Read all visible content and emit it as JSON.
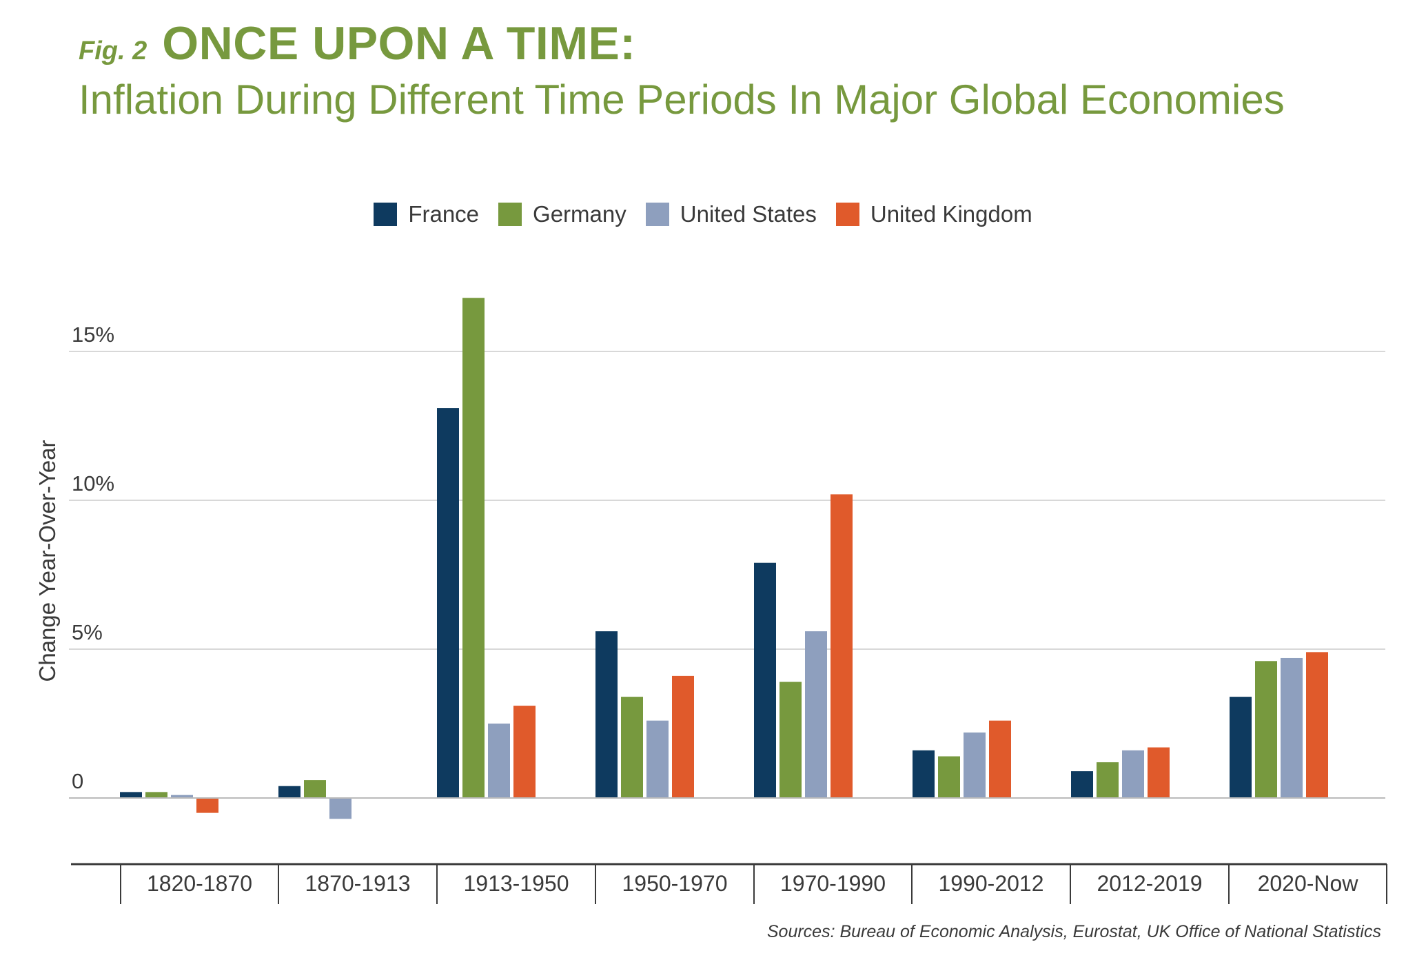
{
  "header": {
    "fig_label": "Fig. 2",
    "title": "ONCE UPON A TIME:",
    "subtitle": "Inflation During Different Time Periods In Major Global Economies"
  },
  "footer": {
    "source": "Sources: Bureau of Economic Analysis, Eurostat, UK Office of National Statistics"
  },
  "colors": {
    "title": "#77993e",
    "grid": "#cccccc",
    "axis": "#3a3a3a"
  },
  "chart_data": {
    "type": "bar",
    "title": "ONCE UPON A TIME:",
    "subtitle": "Inflation During Different Time Periods In Major Global Economies",
    "xlabel": "",
    "ylabel": "Change Year-Over-Year",
    "categories": [
      "1820-1870",
      "1870-1913",
      "1913-1950",
      "1950-1970",
      "1970-1990",
      "1990-2012",
      "2012-2019",
      "2020-Now"
    ],
    "yticks": [
      {
        "value": 0,
        "label": "0"
      },
      {
        "value": 5,
        "label": "5%"
      },
      {
        "value": 10,
        "label": "10%"
      },
      {
        "value": 15,
        "label": "15%"
      }
    ],
    "ylim": [
      -2.3,
      17
    ],
    "grid": true,
    "legend_position": "top-center",
    "series": [
      {
        "name": "France",
        "color": "#0e3a5f",
        "values": [
          0.2,
          0.4,
          13.1,
          5.6,
          7.9,
          1.6,
          0.9,
          3.4
        ]
      },
      {
        "name": "Germany",
        "color": "#77993e",
        "values": [
          0.2,
          0.6,
          16.8,
          3.4,
          3.9,
          1.4,
          1.2,
          4.6
        ]
      },
      {
        "name": "United States",
        "color": "#8e9fbe",
        "values": [
          0.1,
          -0.7,
          2.5,
          2.6,
          5.6,
          2.2,
          1.6,
          4.7
        ]
      },
      {
        "name": "United Kingdom",
        "color": "#e05a2b",
        "values": [
          -0.5,
          null,
          3.1,
          4.1,
          10.2,
          2.6,
          1.7,
          4.9
        ]
      }
    ]
  }
}
